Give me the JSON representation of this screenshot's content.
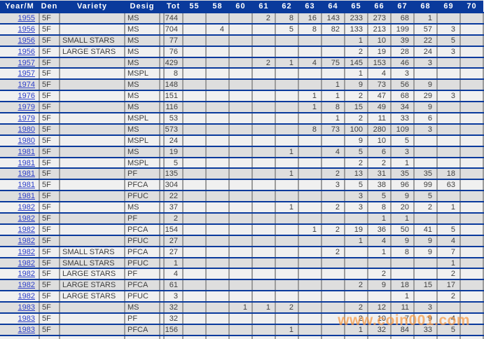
{
  "table": {
    "columns": [
      "Year/M",
      "Den",
      "Variety",
      "Desig",
      "Tot",
      "55",
      "58",
      "60",
      "61",
      "62",
      "63",
      "64",
      "65",
      "66",
      "67",
      "68",
      "69",
      "70"
    ],
    "grade_columns": [
      "55",
      "58",
      "60",
      "61",
      "62",
      "63",
      "64",
      "65",
      "66",
      "67",
      "68",
      "69",
      "70"
    ],
    "rows": [
      {
        "year": "1955",
        "den": "5F",
        "variety": "",
        "desig": "MS",
        "tot": 744,
        "grades": {
          "61": 2,
          "62": 8,
          "63": 16,
          "64": 143,
          "65": 233,
          "66": 273,
          "67": 68,
          "68": 1
        }
      },
      {
        "year": "1956",
        "den": "5F",
        "variety": "",
        "desig": "MS",
        "tot": 704,
        "grades": {
          "58": 4,
          "62": 5,
          "63": 8,
          "64": 82,
          "65": 133,
          "66": 213,
          "67": 199,
          "68": 57,
          "69": 3
        }
      },
      {
        "year": "1956",
        "den": "5F",
        "variety": "SMALL STARS",
        "desig": "MS",
        "tot": 77,
        "grades": {
          "65": 1,
          "66": 10,
          "67": 39,
          "68": 22,
          "69": 5
        }
      },
      {
        "year": "1956",
        "den": "5F",
        "variety": "LARGE STARS",
        "desig": "MS",
        "tot": 76,
        "grades": {
          "65": 2,
          "66": 19,
          "67": 28,
          "68": 24,
          "69": 3
        }
      },
      {
        "year": "1957",
        "den": "5F",
        "variety": "",
        "desig": "MS",
        "tot": 429,
        "grades": {
          "61": 2,
          "62": 1,
          "63": 4,
          "64": 75,
          "65": 145,
          "66": 153,
          "67": 46,
          "68": 3
        }
      },
      {
        "year": "1957",
        "den": "5F",
        "variety": "",
        "desig": "MSPL",
        "tot": 8,
        "grades": {
          "65": 1,
          "66": 4,
          "67": 3
        }
      },
      {
        "year": "1974",
        "den": "5F",
        "variety": "",
        "desig": "MS",
        "tot": 148,
        "grades": {
          "64": 1,
          "65": 9,
          "66": 73,
          "67": 56,
          "68": 9
        }
      },
      {
        "year": "1976",
        "den": "5F",
        "variety": "",
        "desig": "MS",
        "tot": 151,
        "grades": {
          "63": 1,
          "64": 1,
          "65": 2,
          "66": 47,
          "67": 68,
          "68": 29,
          "69": 3
        }
      },
      {
        "year": "1979",
        "den": "5F",
        "variety": "",
        "desig": "MS",
        "tot": 116,
        "grades": {
          "63": 1,
          "64": 8,
          "65": 15,
          "66": 49,
          "67": 34,
          "68": 9
        }
      },
      {
        "year": "1979",
        "den": "5F",
        "variety": "",
        "desig": "MSPL",
        "tot": 53,
        "grades": {
          "64": 1,
          "65": 2,
          "66": 11,
          "67": 33,
          "68": 6
        }
      },
      {
        "year": "1980",
        "den": "5F",
        "variety": "",
        "desig": "MS",
        "tot": 573,
        "grades": {
          "63": 8,
          "64": 73,
          "65": 100,
          "66": 280,
          "67": 109,
          "68": 3
        }
      },
      {
        "year": "1980",
        "den": "5F",
        "variety": "",
        "desig": "MSPL",
        "tot": 24,
        "grades": {
          "65": 9,
          "66": 10,
          "67": 5
        }
      },
      {
        "year": "1981",
        "den": "5F",
        "variety": "",
        "desig": "MS",
        "tot": 19,
        "grades": {
          "62": 1,
          "64": 4,
          "65": 5,
          "66": 6,
          "67": 3
        }
      },
      {
        "year": "1981",
        "den": "5F",
        "variety": "",
        "desig": "MSPL",
        "tot": 5,
        "grades": {
          "65": 2,
          "66": 2,
          "67": 1
        }
      },
      {
        "year": "1981",
        "den": "5F",
        "variety": "",
        "desig": "PF",
        "tot": 135,
        "grades": {
          "62": 1,
          "64": 2,
          "65": 13,
          "66": 31,
          "67": 35,
          "68": 35,
          "69": 18
        }
      },
      {
        "year": "1981",
        "den": "5F",
        "variety": "",
        "desig": "PFCA",
        "tot": 304,
        "grades": {
          "64": 3,
          "65": 5,
          "66": 38,
          "67": 96,
          "68": 99,
          "69": 63
        }
      },
      {
        "year": "1981",
        "den": "5F",
        "variety": "",
        "desig": "PFUC",
        "tot": 22,
        "grades": {
          "65": 3,
          "66": 5,
          "67": 9,
          "68": 5
        }
      },
      {
        "year": "1982",
        "den": "5F",
        "variety": "",
        "desig": "MS",
        "tot": 37,
        "grades": {
          "62": 1,
          "64": 2,
          "65": 3,
          "66": 8,
          "67": 20,
          "68": 2,
          "69": 1
        }
      },
      {
        "year": "1982",
        "den": "5F",
        "variety": "",
        "desig": "PF",
        "tot": 2,
        "grades": {
          "66": 1,
          "67": 1
        }
      },
      {
        "year": "1982",
        "den": "5F",
        "variety": "",
        "desig": "PFCA",
        "tot": 154,
        "grades": {
          "63": 1,
          "64": 2,
          "65": 19,
          "66": 36,
          "67": 50,
          "68": 41,
          "69": 5
        }
      },
      {
        "year": "1982",
        "den": "5F",
        "variety": "",
        "desig": "PFUC",
        "tot": 27,
        "grades": {
          "65": 1,
          "66": 4,
          "67": 9,
          "68": 9,
          "69": 4
        }
      },
      {
        "year": "1982",
        "den": "5F",
        "variety": "SMALL STARS",
        "desig": "PFCA",
        "tot": 27,
        "grades": {
          "64": 2,
          "66": 1,
          "67": 8,
          "68": 9,
          "69": 7
        }
      },
      {
        "year": "1982",
        "den": "5F",
        "variety": "SMALL STARS",
        "desig": "PFUC",
        "tot": 1,
        "grades": {
          "69": 1
        }
      },
      {
        "year": "1982",
        "den": "5F",
        "variety": "LARGE STARS",
        "desig": "PF",
        "tot": 4,
        "grades": {
          "66": 2,
          "69": 2
        }
      },
      {
        "year": "1982",
        "den": "5F",
        "variety": "LARGE STARS",
        "desig": "PFCA",
        "tot": 61,
        "grades": {
          "65": 2,
          "66": 9,
          "67": 18,
          "68": 15,
          "69": 17
        }
      },
      {
        "year": "1982",
        "den": "5F",
        "variety": "LARGE STARS",
        "desig": "PFUC",
        "tot": 3,
        "grades": {
          "67": 1,
          "69": 2
        }
      },
      {
        "year": "1983",
        "den": "5F",
        "variety": "",
        "desig": "MS",
        "tot": 32,
        "grades": {
          "60": 1,
          "61": 1,
          "62": 2,
          "65": 2,
          "66": 12,
          "67": 11,
          "68": 3
        }
      },
      {
        "year": "1983",
        "den": "5F",
        "variety": "",
        "desig": "PF",
        "tot": 32,
        "grades": {
          "65": 2,
          "66": 10,
          "67": 7,
          "68": 9,
          "69": 4
        }
      },
      {
        "year": "1983",
        "den": "5F",
        "variety": "",
        "desig": "PFCA",
        "tot": 156,
        "grades": {
          "62": 1,
          "65": 1,
          "66": 32,
          "67": 84,
          "68": 33,
          "69": 5
        }
      }
    ]
  },
  "watermark": {
    "text": "www.coin001.com"
  },
  "colors": {
    "header_bg": "#0a3a9c",
    "header_text": "#ffffff",
    "row_separator": "#0a3a9c",
    "grid_line": "#9c9c9c",
    "row_dark": "#dedede",
    "row_light": "#f0f0f0",
    "year_link": "#2d3fc8",
    "cell_text": "#3f3f3f",
    "watermark_orange": "#f79943"
  }
}
